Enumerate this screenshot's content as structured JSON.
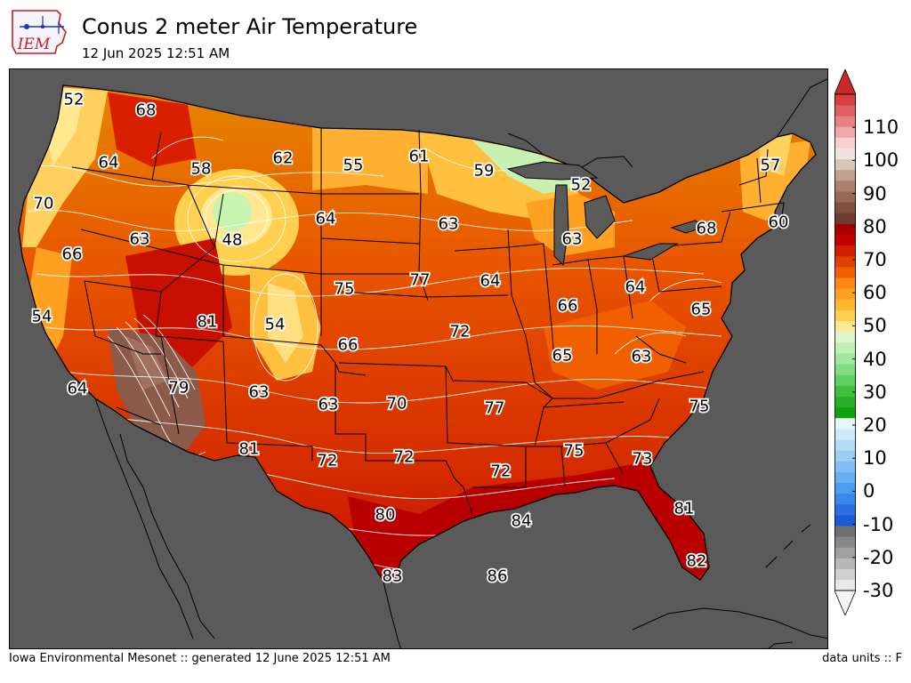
{
  "header": {
    "logo_text": "IEM",
    "title": "Conus 2 meter Air Temperature",
    "subtitle": "12 Jun 2025 12:51 AM"
  },
  "footer": {
    "left": "Iowa Environmental Mesonet :: generated 12 June 2025 12:51 AM",
    "right": "data units :: F"
  },
  "colors": {
    "ocean_background": "#5a5a5a",
    "state_borders": "#000000",
    "isotherms": "#ffffff"
  },
  "colorbar": {
    "min": -30,
    "max": 120,
    "tick_labels": [
      "-30",
      "-20",
      "-10",
      "0",
      "10",
      "20",
      "30",
      "40",
      "50",
      "60",
      "70",
      "80",
      "90",
      "100",
      "110"
    ],
    "extend": "both"
  },
  "chart_data": {
    "type": "heatmap",
    "title": "Conus 2 meter Air Temperature",
    "units": "F",
    "station_values": [
      {
        "value": 52,
        "place": "Washington coast"
      },
      {
        "value": 68,
        "place": "Northern Idaho"
      },
      {
        "value": 64,
        "place": "Washington interior"
      },
      {
        "value": 58,
        "place": "Western Montana"
      },
      {
        "value": 62,
        "place": "Central Montana"
      },
      {
        "value": 55,
        "place": "North Dakota west"
      },
      {
        "value": 61,
        "place": "North Dakota east"
      },
      {
        "value": 59,
        "place": "Northern Minnesota"
      },
      {
        "value": 52,
        "place": "Upper Michigan"
      },
      {
        "value": 57,
        "place": "Maine"
      },
      {
        "value": 70,
        "place": "Oregon coast"
      },
      {
        "value": 63,
        "place": "Eastern Oregon"
      },
      {
        "value": 48,
        "place": "Wyoming"
      },
      {
        "value": 64,
        "place": "South Dakota"
      },
      {
        "value": 63,
        "place": "Minnesota south"
      },
      {
        "value": 63,
        "place": "Michigan lower"
      },
      {
        "value": 68,
        "place": "New York"
      },
      {
        "value": 60,
        "place": "Massachusetts"
      },
      {
        "value": 66,
        "place": "Northern California"
      },
      {
        "value": 75,
        "place": "Nebraska west"
      },
      {
        "value": 77,
        "place": "Nebraska east"
      },
      {
        "value": 64,
        "place": "Iowa"
      },
      {
        "value": 64,
        "place": "Ohio"
      },
      {
        "value": 66,
        "place": "Indiana"
      },
      {
        "value": 65,
        "place": "Pennsylvania south"
      },
      {
        "value": 54,
        "place": "Central California coast"
      },
      {
        "value": 81,
        "place": "Utah"
      },
      {
        "value": 54,
        "place": "Colorado"
      },
      {
        "value": 66,
        "place": "Kansas west"
      },
      {
        "value": 72,
        "place": "Missouri"
      },
      {
        "value": 65,
        "place": "Kentucky"
      },
      {
        "value": 63,
        "place": "West Virginia"
      },
      {
        "value": 64,
        "place": "Southern California"
      },
      {
        "value": 79,
        "place": "Arizona"
      },
      {
        "value": 63,
        "place": "New Mexico north"
      },
      {
        "value": 63,
        "place": "Oklahoma panhandle"
      },
      {
        "value": 70,
        "place": "Oklahoma"
      },
      {
        "value": 77,
        "place": "Arkansas"
      },
      {
        "value": 75,
        "place": "North Carolina"
      },
      {
        "value": 81,
        "place": "Southern New Mexico"
      },
      {
        "value": 72,
        "place": "West Texas"
      },
      {
        "value": 72,
        "place": "Central Texas"
      },
      {
        "value": 72,
        "place": "Louisiana"
      },
      {
        "value": 75,
        "place": "Alabama"
      },
      {
        "value": 73,
        "place": "Georgia"
      },
      {
        "value": 80,
        "place": "South Texas"
      },
      {
        "value": 84,
        "place": "Gulf coast Louisiana"
      },
      {
        "value": 81,
        "place": "Central Florida"
      },
      {
        "value": 83,
        "place": "Texas tip"
      },
      {
        "value": 86,
        "place": "Gulf of Mexico"
      },
      {
        "value": 82,
        "place": "South Florida"
      }
    ]
  }
}
